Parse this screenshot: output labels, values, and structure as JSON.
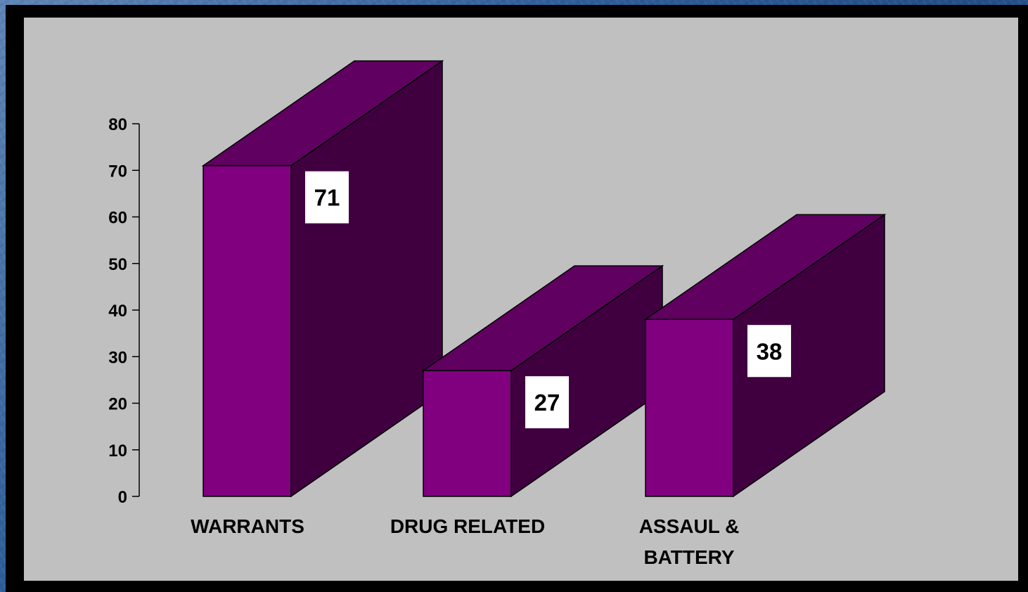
{
  "colors": {
    "plot_background": "#c0c0c0",
    "bar_front": "#800080",
    "bar_top": "#600060",
    "bar_side": "#400040",
    "label_box": "#ffffff"
  },
  "chart_data": {
    "type": "bar",
    "style": "3d",
    "title": "",
    "xlabel": "",
    "ylabel": "",
    "categories": [
      [
        "WARRANTS"
      ],
      [
        "DRUG RELATED"
      ],
      [
        "ASSAUL &",
        "BATTERY"
      ]
    ],
    "values": [
      71,
      27,
      38
    ],
    "data_labels": [
      "71",
      "27",
      "38"
    ],
    "ylim": [
      0,
      80
    ],
    "yticks": [
      0,
      10,
      20,
      30,
      40,
      50,
      60,
      70,
      80
    ],
    "grid": false,
    "legend": "none"
  }
}
